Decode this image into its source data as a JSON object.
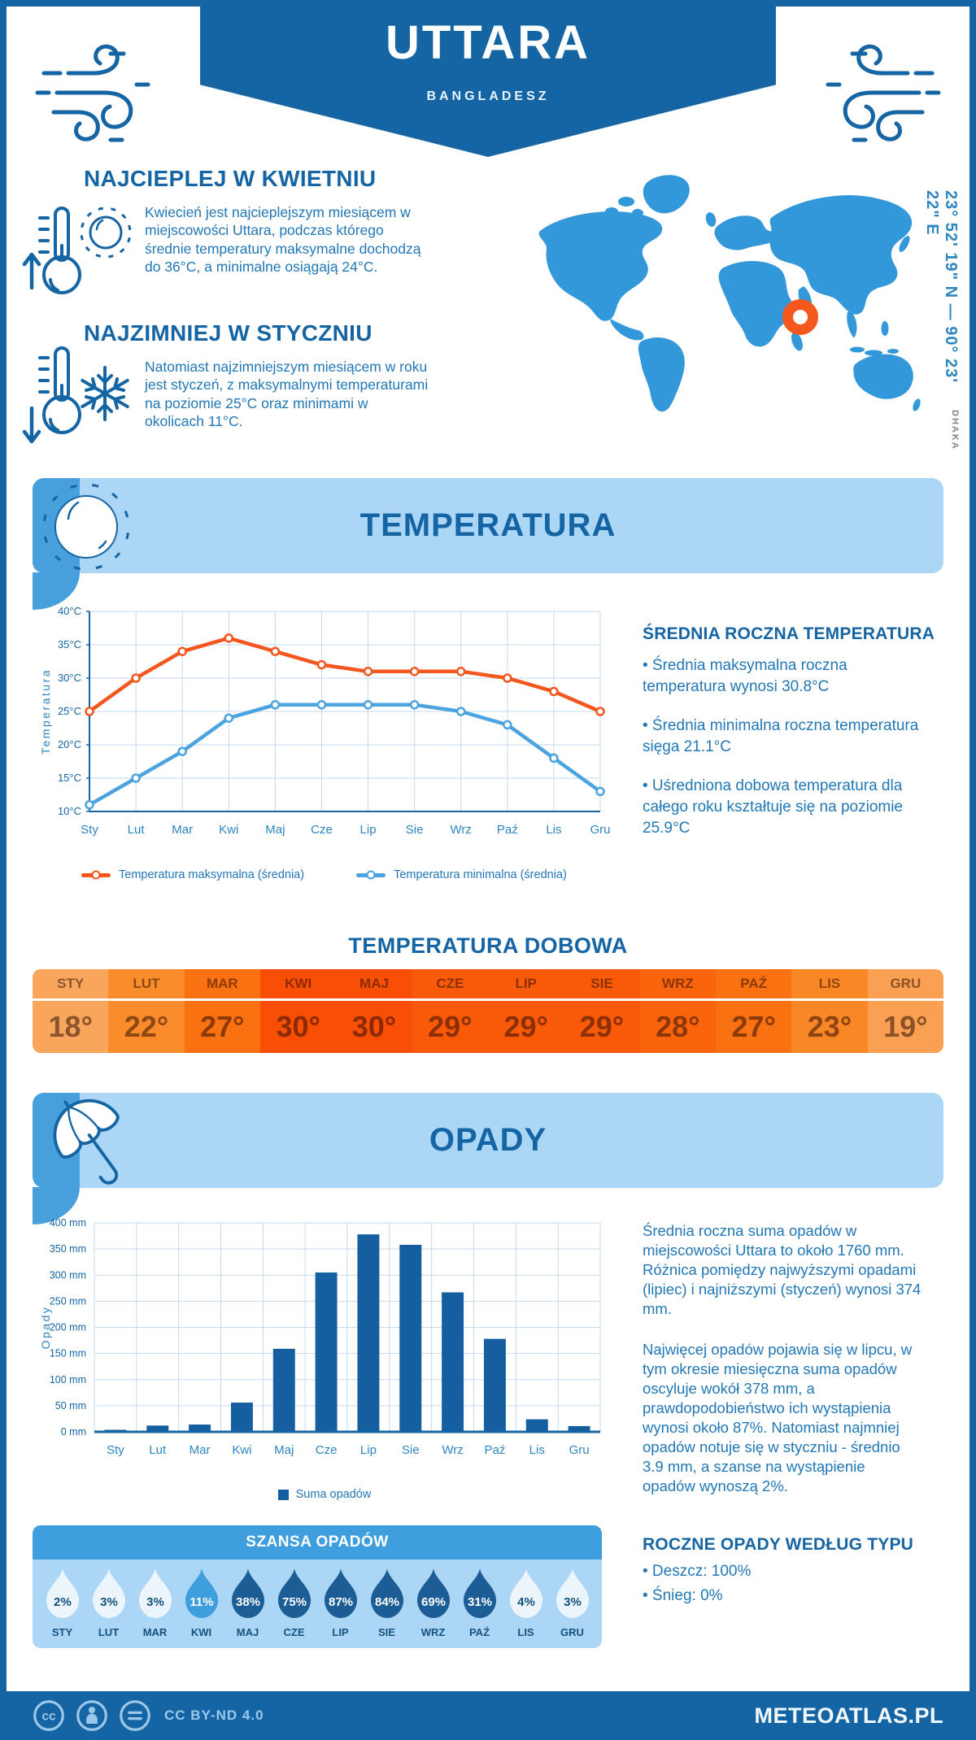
{
  "header": {
    "title": "UTTARA",
    "subtitle": "BANGLADESZ"
  },
  "location": {
    "coordinates": "23° 52' 19\" N — 90° 23' 22\" E",
    "city": "DHAKA"
  },
  "highlights": {
    "warm": {
      "title": "NAJCIEPLEJ W KWIETNIU",
      "text": "Kwiecień jest najcieplejszym miesiącem w\nmiejscowości Uttara, podczas którego\nśrednie temperatury maksymalne dochodzą\ndo 36°C, a minimalne osiągają 24°C."
    },
    "cold": {
      "title": "NAJZIMNIEJ W STYCZNIU",
      "text": "Natomiast najzimniejszym miesiącem w roku\njest styczeń, z maksymalnymi temperaturami\nna poziomie 25°C oraz minimami w\nokolicach 11°C."
    }
  },
  "temperature_section": {
    "banner": "TEMPERATURA",
    "annual": {
      "heading": "ŚREDNIA ROCZNA TEMPERATURA",
      "bullets": [
        "• Średnia maksymalna roczna\ntemperatura wynosi 30.8°C",
        "• Średnia minimalna roczna temperatura\nsięga 21.1°C",
        "• Uśredniona dobowa temperatura dla\ncałego roku kształtuje się na poziomie\n25.9°C"
      ]
    },
    "daily_heading": "TEMPERATURA DOBOWA"
  },
  "daily_temperature": {
    "months": [
      "STY",
      "LUT",
      "MAR",
      "KWI",
      "MAJ",
      "CZE",
      "LIP",
      "SIE",
      "WRZ",
      "PAŹ",
      "LIS",
      "GRU"
    ],
    "values": [
      "18°",
      "22°",
      "27°",
      "30°",
      "30°",
      "29°",
      "29°",
      "29°",
      "28°",
      "27°",
      "23°",
      "19°"
    ],
    "colors": [
      "#F9A55C",
      "#FA8C2B",
      "#F97110",
      "#F94E05",
      "#F94E05",
      "#F95A0A",
      "#F95A0A",
      "#F95A0A",
      "#F9640D",
      "#F97110",
      "#FA8726",
      "#F9A052"
    ]
  },
  "precipitation_section": {
    "banner": "OPADY",
    "paragraphs": [
      "Średnia roczna suma opadów w\nmiejscowości Uttara to około 1760 mm.\nRóżnica pomiędzy najwyższymi opadami\n(lipiec) i najniższymi (styczeń) wynosi 374\nmm.",
      "Najwięcej opadów pojawia się w lipcu, w\ntym okresie miesięczna suma opadów\noscyluje wokół 378 mm, a\nprawdopodobieństwo ich wystąpienia\nwynosi około 87%. Natomiast najmniej\nopadów notuje się w styczniu - średnio\n3.9 mm, a szanse na wystąpienie\nopadów wynoszą 2%."
    ],
    "type_heading": "ROCZNE OPADY WEDŁUG TYPU",
    "type_bullets": [
      "• Deszcz: 100%",
      "• Śnieg: 0%"
    ]
  },
  "rain_chance": {
    "heading": "SZANSA OPADÓW",
    "months": [
      {
        "label": "STY",
        "percent": "2%",
        "fill": "#EDF5FC",
        "text": "#15527E"
      },
      {
        "label": "LUT",
        "percent": "3%",
        "fill": "#EDF5FC",
        "text": "#15527E"
      },
      {
        "label": "MAR",
        "percent": "3%",
        "fill": "#EDF5FC",
        "text": "#15527E"
      },
      {
        "label": "KWI",
        "percent": "11%",
        "fill": "#3F9EDD",
        "text": "#FFFFFF"
      },
      {
        "label": "MAJ",
        "percent": "38%",
        "fill": "#1C5D96",
        "text": "#FFFFFF"
      },
      {
        "label": "CZE",
        "percent": "75%",
        "fill": "#1C5D96",
        "text": "#FFFFFF"
      },
      {
        "label": "LIP",
        "percent": "87%",
        "fill": "#1C5D96",
        "text": "#FFFFFF"
      },
      {
        "label": "SIE",
        "percent": "84%",
        "fill": "#1C5D96",
        "text": "#FFFFFF"
      },
      {
        "label": "WRZ",
        "percent": "69%",
        "fill": "#1C5D96",
        "text": "#FFFFFF"
      },
      {
        "label": "PAŹ",
        "percent": "31%",
        "fill": "#1C5D96",
        "text": "#FFFFFF"
      },
      {
        "label": "LIS",
        "percent": "4%",
        "fill": "#EDF5FC",
        "text": "#15527E"
      },
      {
        "label": "GRU",
        "percent": "3%",
        "fill": "#EDF5FC",
        "text": "#15527E"
      }
    ]
  },
  "footer": {
    "license": "CC BY-ND 4.0",
    "site": "METEOATLAS.PL"
  },
  "colors": {
    "primary": "#1565A4",
    "medium_blue": "#3F9EDD",
    "light_blue": "#ABD6F6",
    "map_blue": "#3398DA",
    "marker_orange": "#F4581D"
  },
  "chart_data": [
    {
      "type": "line",
      "x": [
        "Sty",
        "Lut",
        "Mar",
        "Kwi",
        "Maj",
        "Cze",
        "Lip",
        "Sie",
        "Wrz",
        "Paź",
        "Lis",
        "Gru"
      ],
      "ylabel": "Temperatura",
      "ylim": [
        10,
        40
      ],
      "ytick_step": 5,
      "ytick_suffix": "°C",
      "grid": true,
      "legend_position": "bottom",
      "series": [
        {
          "name": "Temperatura maksymalna (średnia)",
          "color": "#F4571D",
          "values": [
            25,
            30,
            34,
            36,
            34,
            32,
            31,
            31,
            31,
            30,
            28,
            25
          ]
        },
        {
          "name": "Temperatura minimalna (średnia)",
          "color": "#4BA3DF",
          "values": [
            11,
            15,
            19,
            24,
            26,
            26,
            26,
            26,
            25,
            23,
            18,
            13
          ]
        }
      ]
    },
    {
      "type": "bar",
      "x": [
        "Sty",
        "Lut",
        "Mar",
        "Kwi",
        "Maj",
        "Cze",
        "Lip",
        "Sie",
        "Wrz",
        "Paź",
        "Lis",
        "Gru"
      ],
      "ylabel": "Opady",
      "ylim": [
        0,
        400
      ],
      "ytick_step": 50,
      "ytick_suffix": " mm",
      "grid": true,
      "legend_position": "bottom",
      "series": [
        {
          "name": "Suma opadów",
          "color": "#155FA0",
          "values": [
            3.9,
            12,
            14,
            56,
            159,
            305,
            378,
            358,
            267,
            178,
            24,
            11
          ]
        }
      ]
    }
  ]
}
